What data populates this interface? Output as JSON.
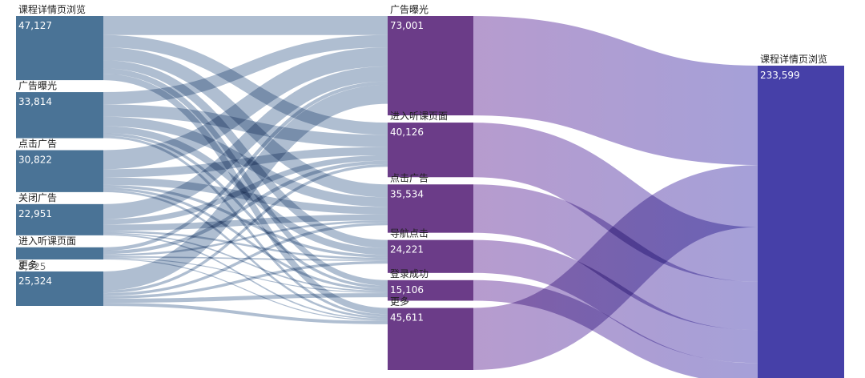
{
  "chart_data": {
    "type": "sankey",
    "columns": [
      {
        "nodes": [
          {
            "id": "L0",
            "label": "课程详情页浏览",
            "value": "47,127"
          },
          {
            "id": "L1",
            "label": "广告曝光",
            "value": "33,814"
          },
          {
            "id": "L2",
            "label": "点击广告",
            "value": "30,822"
          },
          {
            "id": "L3",
            "label": "关闭广告",
            "value": "22,951"
          },
          {
            "id": "L4",
            "label": "进入听课页面",
            "value": "8,925"
          },
          {
            "id": "L5",
            "label": "更多",
            "value": "25,324"
          }
        ]
      },
      {
        "nodes": [
          {
            "id": "M0",
            "label": "广告曝光",
            "value": "73,001"
          },
          {
            "id": "M1",
            "label": "进入听课页面",
            "value": "40,126"
          },
          {
            "id": "M2",
            "label": "点击广告",
            "value": "35,534"
          },
          {
            "id": "M3",
            "label": "导航点击",
            "value": "24,221"
          },
          {
            "id": "M4",
            "label": "登录成功",
            "value": "15,106"
          },
          {
            "id": "M5",
            "label": "更多",
            "value": "45,611"
          }
        ]
      },
      {
        "nodes": [
          {
            "id": "R0",
            "label": "课程详情页浏览",
            "value": "233,599"
          }
        ]
      }
    ],
    "colors": {
      "left_node": "#4a7396",
      "middle_node": "#6b3c88",
      "right_node": "#4640a8",
      "left_link": "#4d6f98",
      "mid_link": "#7b5aa8"
    },
    "links": [
      {
        "source": "L0",
        "target": "M0",
        "value": 14000
      },
      {
        "source": "L0",
        "target": "M1",
        "value": 9000
      },
      {
        "source": "L0",
        "target": "M2",
        "value": 9500
      },
      {
        "source": "L0",
        "target": "M3",
        "value": 6000
      },
      {
        "source": "L0",
        "target": "M4",
        "value": 4000
      },
      {
        "source": "L0",
        "target": "M5",
        "value": 4627
      },
      {
        "source": "L1",
        "target": "M0",
        "value": 9000
      },
      {
        "source": "L1",
        "target": "M1",
        "value": 9000
      },
      {
        "source": "L1",
        "target": "M2",
        "value": 7000
      },
      {
        "source": "L1",
        "target": "M3",
        "value": 5000
      },
      {
        "source": "L1",
        "target": "M4",
        "value": 2000
      },
      {
        "source": "L1",
        "target": "M5",
        "value": 1814
      },
      {
        "source": "L2",
        "target": "M0",
        "value": 14000
      },
      {
        "source": "L2",
        "target": "M1",
        "value": 6000
      },
      {
        "source": "L2",
        "target": "M2",
        "value": 5500
      },
      {
        "source": "L2",
        "target": "M3",
        "value": 2000
      },
      {
        "source": "L2",
        "target": "M4",
        "value": 1822
      },
      {
        "source": "L2",
        "target": "M5",
        "value": 1500
      },
      {
        "source": "L3",
        "target": "M0",
        "value": 11000
      },
      {
        "source": "L3",
        "target": "M1",
        "value": 4000
      },
      {
        "source": "L3",
        "target": "M2",
        "value": 4500
      },
      {
        "source": "L3",
        "target": "M3",
        "value": 1451
      },
      {
        "source": "L3",
        "target": "M4",
        "value": 1000
      },
      {
        "source": "L3",
        "target": "M5",
        "value": 1000
      },
      {
        "source": "L4",
        "target": "M0",
        "value": 2500
      },
      {
        "source": "L4",
        "target": "M1",
        "value": 2500
      },
      {
        "source": "L4",
        "target": "M2",
        "value": 1500
      },
      {
        "source": "L4",
        "target": "M3",
        "value": 1000
      },
      {
        "source": "L4",
        "target": "M4",
        "value": 700
      },
      {
        "source": "L4",
        "target": "M5",
        "value": 725
      },
      {
        "source": "L5",
        "target": "M0",
        "value": 14000
      },
      {
        "source": "L5",
        "target": "M1",
        "value": 2000
      },
      {
        "source": "L5",
        "target": "M2",
        "value": 2000
      },
      {
        "source": "L5",
        "target": "M3",
        "value": 2000
      },
      {
        "source": "L5",
        "target": "M4",
        "value": 3000
      },
      {
        "source": "L5",
        "target": "M5",
        "value": 2324
      },
      {
        "source": "M0",
        "target": "R0",
        "value": 73001
      },
      {
        "source": "M5",
        "target": "R0",
        "value": 45611
      },
      {
        "source": "M1",
        "target": "R0",
        "value": 40126
      },
      {
        "source": "M2",
        "target": "R0",
        "value": 35534
      },
      {
        "source": "M3",
        "target": "R0",
        "value": 24221
      },
      {
        "source": "M4",
        "target": "R0",
        "value": 15106
      }
    ]
  }
}
